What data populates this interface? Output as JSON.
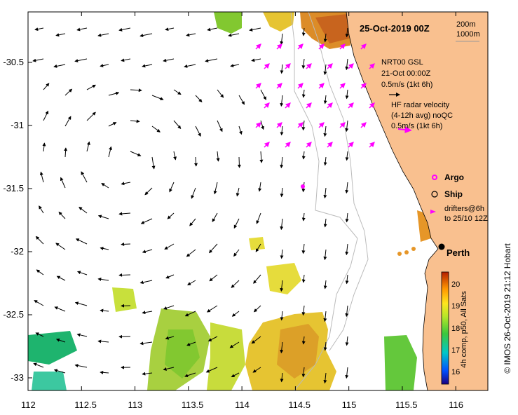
{
  "map": {
    "date_title": "25-Oct-2019 00Z",
    "lon_ticks": [
      "112",
      "112.5",
      "113",
      "113.5",
      "114",
      "114.5",
      "115",
      "115.5",
      "116"
    ],
    "lat_ticks": [
      "-30.5",
      "-31",
      "-31.5",
      "-32",
      "-32.5",
      "-33"
    ],
    "lon_range": [
      112,
      116.3
    ],
    "lat_range": [
      -33.1,
      -30.1
    ],
    "contour_labels": {
      "shelf": "200m",
      "slope": "1000m"
    },
    "legend": {
      "model_name": "NRT00 GSL",
      "model_time": "21-Oct 00:00Z",
      "model_scale": "0.5m/s (1kt 6h)",
      "hf_title": "HF radar velocity",
      "hf_sub": "(4-12h avg) noQC",
      "hf_scale": "0.5m/s (1kt 6h)",
      "argo_label": "Argo",
      "ship_label": "Ship",
      "drifters_line1": "drifters@6h",
      "drifters_line2": "to 25/10 12Z"
    },
    "city": "Perth",
    "colorbar": {
      "ticks": [
        "16",
        "17",
        "18",
        "19",
        "20"
      ],
      "range": [
        15.5,
        20.6
      ],
      "label": "4h comp, p50, All Sats"
    },
    "credit": "© IMOS 26-Oct-2019 21:12 Hobart",
    "colors": {
      "land": "#f9c08f",
      "radar_vectors": "#ff00ff",
      "model_vectors": "#000000",
      "perth_marker": "#000000"
    }
  }
}
